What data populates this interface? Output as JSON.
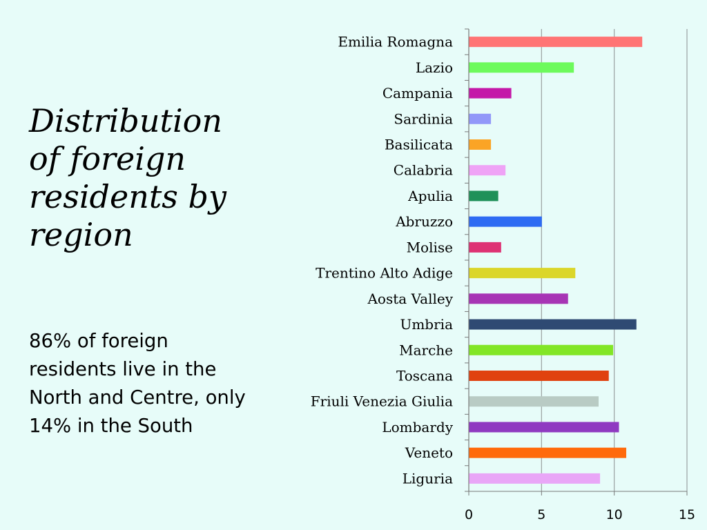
{
  "slide": {
    "title": "Distribution of foreign residents by region",
    "body": "86% of foreign residents live in the North and Centre, only 14% in the South"
  },
  "chart_data": {
    "type": "bar",
    "orientation": "horizontal",
    "categories": [
      "Emilia Romagna",
      "Lazio",
      "Campania",
      "Sardinia",
      "Basilicata",
      "Calabria",
      "Apulia",
      "Abruzzo",
      "Molise",
      "Trentino Alto Adige",
      "Aosta Valley",
      "Umbria",
      "Marche",
      "Toscana",
      "Friuli Venezia Giulia",
      "Lombardy",
      "Veneto",
      "Liguria"
    ],
    "values": [
      11.9,
      7.2,
      2.9,
      1.5,
      1.5,
      2.5,
      2.0,
      5.0,
      2.2,
      7.3,
      6.8,
      11.5,
      9.9,
      9.6,
      8.9,
      10.3,
      10.8,
      9.0
    ],
    "colors": [
      "#ff7474",
      "#6dfa5c",
      "#c418a8",
      "#9298f9",
      "#fba425",
      "#efa3f6",
      "#1f9159",
      "#2e6bf3",
      "#de3274",
      "#dbd62a",
      "#a735b5",
      "#2f4a73",
      "#82e626",
      "#e0420f",
      "#b9cbc4",
      "#8f3ac1",
      "#ff6a0b",
      "#e9a6f7"
    ],
    "xlim": [
      0,
      15
    ],
    "xticks": [
      0,
      5,
      10,
      15
    ],
    "grid": "vertical",
    "gridColor": "#9aa0a0",
    "legend": "none"
  }
}
